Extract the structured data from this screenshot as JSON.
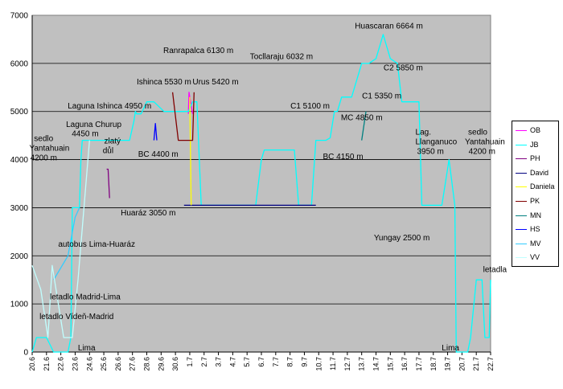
{
  "chart_data": {
    "type": "line",
    "title": "",
    "xlabel": "",
    "ylabel": "",
    "ylim": [
      0,
      7000
    ],
    "yticks": [
      0,
      1000,
      2000,
      3000,
      4000,
      5000,
      6000,
      7000
    ],
    "xlim": [
      0,
      32
    ],
    "x_tick_labels": [
      "20.6",
      "21.6",
      "22.6",
      "23.6",
      "24.6",
      "25.6",
      "26.6",
      "27.6",
      "28.6",
      "29.6",
      "30.6",
      "1.7",
      "2.7",
      "3.7",
      "4.7",
      "5.7",
      "6.7",
      "7.7",
      "8.7",
      "9.7",
      "10.7",
      "11.7",
      "12.7",
      "13.7",
      "14.7",
      "15.7",
      "16.7",
      "17.7",
      "18.7",
      "19.7",
      "20.7",
      "21.7",
      "22.7"
    ],
    "grid": "horizontal",
    "plot_background": "#c0c0c0",
    "legend_position": "right",
    "series": [
      {
        "name": "OB",
        "color": "#ff00ff",
        "x": [
          10.9,
          10.95,
          11.2
        ],
        "y": [
          4950,
          5400,
          4950
        ]
      },
      {
        "name": "JB",
        "color": "#00ffff",
        "x": [
          0.0,
          0.3,
          1.0,
          1.5,
          2.1,
          2.5,
          2.7,
          2.8,
          3.0,
          3.2,
          3.3,
          3.4,
          3.5,
          3.6,
          3.8,
          4.0,
          4.3,
          4.8,
          5.0,
          5.3,
          5.8,
          6.2,
          6.8,
          7.1,
          7.2,
          7.3,
          7.6,
          8.0,
          8.5,
          9.2,
          9.8,
          10.0,
          10.4,
          10.9,
          11.2,
          11.5,
          11.8,
          12.6,
          13.0,
          13.4,
          13.6,
          13.8,
          14.0,
          14.3,
          14.6,
          14.8,
          15.0,
          15.4,
          15.6,
          16.0,
          16.2,
          16.8,
          17.5,
          18.0,
          18.3,
          18.6,
          19.0,
          19.3,
          19.5,
          19.8,
          20.1,
          20.5,
          20.8,
          21.1,
          21.3,
          21.6,
          22.0,
          22.3,
          23.0,
          23.5,
          24.0,
          24.5,
          25.0,
          25.5,
          25.8,
          26.0,
          26.3,
          26.5,
          26.7,
          27.0,
          27.2,
          27.4,
          27.5,
          27.6,
          27.8,
          28.1,
          28.3,
          28.6,
          29.1,
          29.5,
          29.6,
          29.8,
          30.2,
          30.4,
          30.6,
          31.0,
          31.4,
          31.6,
          31.9,
          32.0
        ],
        "y": [
          0,
          300,
          300,
          0,
          0,
          0,
          300,
          3000,
          3000,
          3000,
          3000,
          4000,
          4400,
          4400,
          4400,
          4400,
          4400,
          4400,
          4400,
          4400,
          4400,
          4400,
          4400,
          4800,
          5000,
          4950,
          4950,
          5200,
          5200,
          5000,
          5000,
          5000,
          5000,
          5000,
          5200,
          5200,
          3050,
          3050,
          3050,
          3050,
          3050,
          3050,
          3050,
          3050,
          3050,
          3050,
          3050,
          3050,
          3050,
          4000,
          4200,
          4200,
          4200,
          4200,
          4200,
          3050,
          3050,
          3050,
          3050,
          4400,
          4400,
          4400,
          4450,
          5000,
          5000,
          5300,
          5300,
          5300,
          6000,
          6000,
          6100,
          6600,
          6100,
          6000,
          5200,
          5200,
          5200,
          5200,
          5200,
          5200,
          3050,
          3050,
          3050,
          3050,
          3050,
          3050,
          3050,
          3050,
          4000,
          3050,
          0,
          0,
          0,
          0,
          300,
          1500,
          1500,
          300,
          300,
          1500
        ]
      },
      {
        "name": "PH",
        "color": "#800080",
        "x": [
          5.2,
          5.3,
          5.4
        ],
        "y": [
          3800,
          3800,
          3200
        ]
      },
      {
        "name": "David",
        "color": "#000080",
        "x": [
          10.6,
          11.0,
          13.2,
          13.4,
          19.5,
          19.8
        ],
        "y": [
          3050,
          3050,
          3050,
          3050,
          3050,
          3050
        ]
      },
      {
        "name": "Daniela",
        "color": "#ffff00",
        "x": [
          11.0,
          11.1
        ],
        "y": [
          5300,
          3050
        ]
      },
      {
        "name": "PK",
        "color": "#800000",
        "x": [
          9.8,
          10.2,
          11.2,
          11.3
        ],
        "y": [
          5400,
          4400,
          4400,
          5400
        ]
      },
      {
        "name": "MN",
        "color": "#008080",
        "x": [
          23.0,
          23.3
        ],
        "y": [
          4400,
          5000
        ]
      },
      {
        "name": "HS",
        "color": "#0000ff",
        "x": [
          8.5,
          8.6,
          8.7
        ],
        "y": [
          4400,
          4750,
          4400
        ]
      },
      {
        "name": "MV",
        "color": "#33ccff",
        "x": [
          1.5,
          2.5,
          3.0,
          3.3
        ],
        "y": [
          1500,
          2000,
          2800,
          3000
        ]
      },
      {
        "name": "VV",
        "color": "#c0ffff",
        "x": [
          0.0,
          0.6,
          1.1,
          1.4,
          2.2,
          2.8,
          3.2,
          4.0
        ],
        "y": [
          1800,
          1300,
          300,
          1800,
          300,
          300,
          1500,
          4400
        ]
      }
    ],
    "annotations": [
      {
        "text": "Huascaran 6664 m",
        "x": 24.9,
        "y": 6780
      },
      {
        "text": "Ranrapalca 6130 m",
        "x": 11.6,
        "y": 6270
      },
      {
        "text": "Tocllaraju 6032 m",
        "x": 17.4,
        "y": 6150
      },
      {
        "text": "C2 5850 m",
        "x": 25.9,
        "y": 5910
      },
      {
        "text": "Ishinca 5530 m",
        "x": 9.2,
        "y": 5620
      },
      {
        "text": "Urus 5420 m",
        "x": 12.8,
        "y": 5620
      },
      {
        "text": "C1 5350 m",
        "x": 24.4,
        "y": 5330
      },
      {
        "text": "C1 5100 m",
        "x": 19.4,
        "y": 5120
      },
      {
        "text": "Laguna Ishinca 4950 m",
        "x": 5.4,
        "y": 5120
      },
      {
        "text": "MC 4850 m",
        "x": 23.0,
        "y": 4880
      },
      {
        "text": "Laguna Churup",
        "x": 4.3,
        "y": 4740
      },
      {
        "text": "4450 m",
        "x": 3.7,
        "y": 4540
      },
      {
        "text": "sedlo",
        "x": 0.8,
        "y": 4440
      },
      {
        "text": "Yantahuain",
        "x": 1.2,
        "y": 4240
      },
      {
        "text": "4200 m",
        "x": 0.8,
        "y": 4040
      },
      {
        "text": "zlatý",
        "x": 5.6,
        "y": 4390
      },
      {
        "text": "důl",
        "x": 5.3,
        "y": 4190
      },
      {
        "text": "BC 4400 m",
        "x": 8.8,
        "y": 4120
      },
      {
        "text": "BC 4150 m",
        "x": 21.7,
        "y": 4070
      },
      {
        "text": "Lag.",
        "x": 27.3,
        "y": 4580
      },
      {
        "text": "Llanganuco",
        "x": 28.2,
        "y": 4380
      },
      {
        "text": "3950 m",
        "x": 27.8,
        "y": 4180
      },
      {
        "text": "sedlo",
        "x": 31.1,
        "y": 4580
      },
      {
        "text": "Yantahuain",
        "x": 31.6,
        "y": 4380
      },
      {
        "text": "4200 m",
        "x": 31.4,
        "y": 4180
      },
      {
        "text": "Huaráz 3050 m",
        "x": 8.1,
        "y": 2900
      },
      {
        "text": "Yungay 2500 m",
        "x": 25.8,
        "y": 2380
      },
      {
        "text": "autobus Lima-Huaráz",
        "x": 4.5,
        "y": 2250
      },
      {
        "text": "letadlo Madrid-Lima",
        "x": 3.7,
        "y": 1150
      },
      {
        "text": "letadlo Vídeň-Madrid",
        "x": 3.1,
        "y": 740
      },
      {
        "text": "Lima",
        "x": 3.8,
        "y": 90
      },
      {
        "text": "Lima",
        "x": 29.2,
        "y": 90
      },
      {
        "text": "letadla",
        "x": 32.3,
        "y": 1720
      }
    ]
  }
}
